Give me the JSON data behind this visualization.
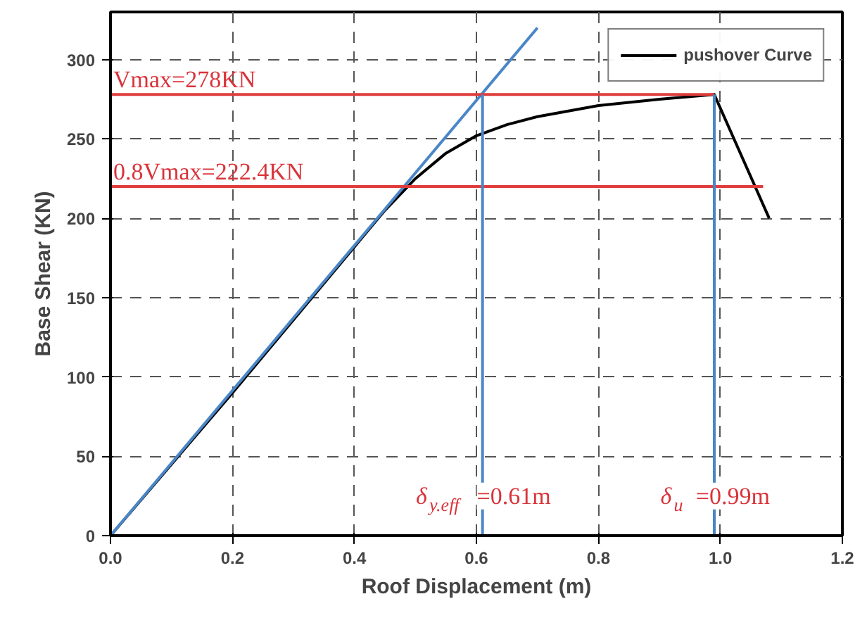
{
  "chart_data": {
    "type": "line",
    "xlabel": "Roof Displacement (m)",
    "ylabel": "Base Shear (KN)",
    "xlim": [
      0,
      1.2
    ],
    "ylim": [
      0,
      330
    ],
    "xticks": [
      {
        "value": 0,
        "label": "0.0"
      },
      {
        "value": 0.2,
        "label": "0.2"
      },
      {
        "value": 0.4,
        "label": "0.4"
      },
      {
        "value": 0.6,
        "label": "0.6"
      },
      {
        "value": 0.8,
        "label": "0.8"
      },
      {
        "value": 1.0,
        "label": "1.0"
      },
      {
        "value": 1.2,
        "label": "1.2"
      }
    ],
    "yticks": [
      0,
      50,
      100,
      150,
      200,
      250,
      300
    ],
    "grid": true,
    "legend": "top right",
    "series": [
      {
        "name": "pushover Curve",
        "color": "#000000",
        "x": [
          0,
          0.2,
          0.4,
          0.45,
          0.5,
          0.55,
          0.6,
          0.65,
          0.7,
          0.8,
          0.9,
          0.99,
          1.08
        ],
        "values": [
          0,
          90,
          182,
          205,
          225,
          241,
          252,
          259,
          264,
          271,
          275,
          278,
          200
        ]
      },
      {
        "color": "#4a86c8",
        "x": [
          0,
          0.7
        ],
        "values": [
          0,
          320
        ]
      },
      {
        "color": "#e03c3c",
        "x": [
          0,
          0.99
        ],
        "values": [
          278,
          278
        ]
      },
      {
        "color": "#e03c3c",
        "x": [
          0,
          1.07
        ],
        "values": [
          220,
          220
        ]
      },
      {
        "color": "#4a86c8",
        "x": [
          0.61,
          0.61
        ],
        "values": [
          0,
          278
        ]
      },
      {
        "color": "#4a86c8",
        "x": [
          0.99,
          0.99
        ],
        "values": [
          0,
          278
        ]
      }
    ],
    "annotations": [
      {
        "text": "Vmax=278KN",
        "x": 0,
        "y": 278
      },
      {
        "text": "0.8Vmax=222.4KN",
        "x": 0,
        "y": 220
      },
      {
        "text": "δ$_{y.eff}$ =0.61m",
        "x": 0.61,
        "y": 25
      },
      {
        "text": "δ$_{u}$ =0.99m",
        "x": 0.99,
        "y": 25
      }
    ]
  }
}
